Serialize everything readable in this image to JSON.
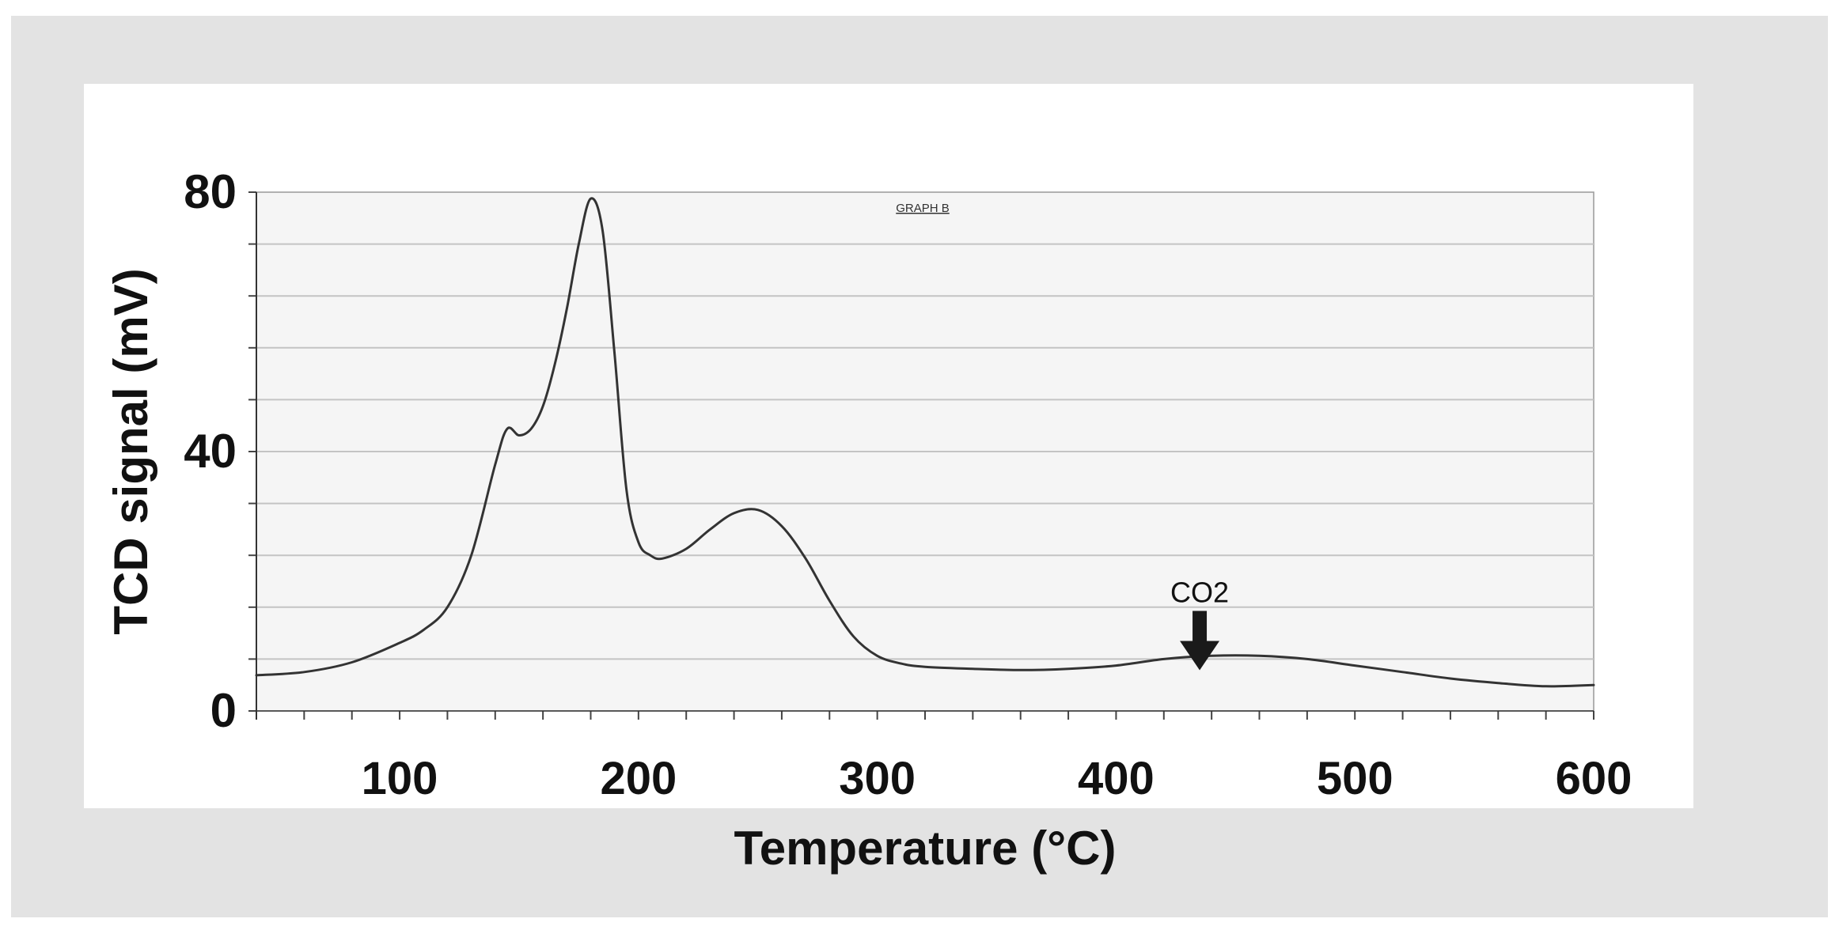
{
  "chart_data": {
    "type": "line",
    "title": "GRAPH B",
    "xlabel": "Temperature (°C)",
    "ylabel": "TCD signal (mV)",
    "xlim": [
      40,
      600
    ],
    "ylim": [
      0,
      80
    ],
    "x_ticks": [
      100,
      200,
      300,
      400,
      500,
      600
    ],
    "y_ticks": [
      0,
      40,
      80
    ],
    "grid": true,
    "legend": "none",
    "annotations": [
      {
        "text": "CO2",
        "x": 435,
        "y": 7.5,
        "marker": "down-arrow"
      }
    ],
    "series": [
      {
        "x": [
          40,
          60,
          80,
          100,
          110,
          120,
          130,
          140,
          145,
          150,
          155,
          160,
          165,
          170,
          175,
          180,
          185,
          190,
          195,
          200,
          205,
          210,
          220,
          230,
          240,
          250,
          260,
          270,
          280,
          290,
          300,
          310,
          320,
          340,
          360,
          380,
          400,
          420,
          440,
          460,
          480,
          500,
          520,
          540,
          560,
          580,
          600
        ],
        "y": [
          5.5,
          6.0,
          7.5,
          10.5,
          12.5,
          16.0,
          24.0,
          38.0,
          43.5,
          42.5,
          43.5,
          47.0,
          53.5,
          62.0,
          72.0,
          79.0,
          74.0,
          55.0,
          34.0,
          26.0,
          24.0,
          23.5,
          25.0,
          28.0,
          30.5,
          31.0,
          28.5,
          23.5,
          17.0,
          11.5,
          8.5,
          7.3,
          6.8,
          6.5,
          6.3,
          6.5,
          7.0,
          8.0,
          8.5,
          8.5,
          8.0,
          7.0,
          6.0,
          5.0,
          4.3,
          3.8,
          4.0
        ],
        "color": "#333333"
      }
    ]
  }
}
